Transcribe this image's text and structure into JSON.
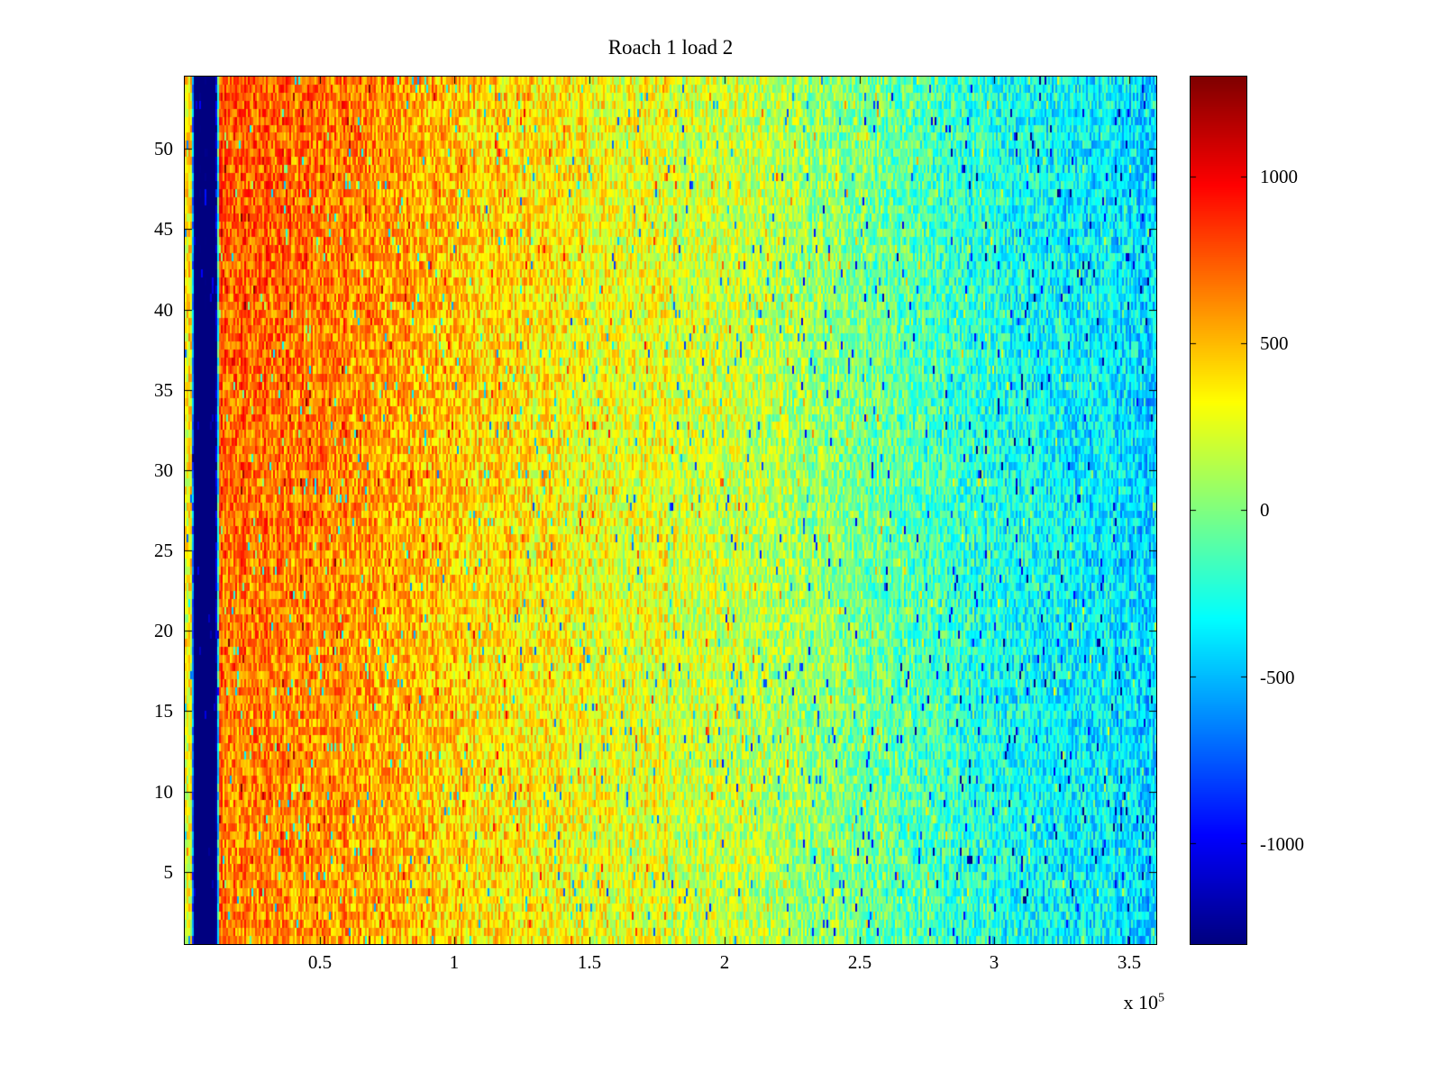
{
  "chart_data": {
    "type": "heatmap",
    "title": "Roach 1 load 2",
    "x_axis": {
      "ticks": [
        "0.5",
        "1",
        "1.5",
        "2",
        "2.5",
        "3",
        "3.5"
      ],
      "tick_values": [
        0.5,
        1,
        1.5,
        2,
        2.5,
        3,
        3.5
      ],
      "range": [
        0,
        3.6
      ],
      "units_multiplier": 100000,
      "exponent_base": "x 10",
      "exponent": "5"
    },
    "y_axis": {
      "ticks": [
        "5",
        "10",
        "15",
        "20",
        "25",
        "30",
        "35",
        "40",
        "45",
        "50"
      ],
      "tick_values": [
        5,
        10,
        15,
        20,
        25,
        30,
        35,
        40,
        45,
        50
      ],
      "range": [
        1,
        54
      ],
      "rows": 54
    },
    "colorbar": {
      "ticks": [
        "1000",
        "500",
        "0",
        "-500",
        "-1000"
      ],
      "tick_values": [
        1000,
        500,
        0,
        -500,
        -1000
      ],
      "clim": [
        -1300,
        1300
      ],
      "colormap": "jet"
    },
    "value_profile": [
      [
        0.0,
        260
      ],
      [
        0.025,
        300
      ],
      [
        0.035,
        -1480
      ],
      [
        0.115,
        -1480
      ],
      [
        0.13,
        700
      ],
      [
        0.4,
        640
      ],
      [
        0.7,
        560
      ],
      [
        1.0,
        450
      ],
      [
        1.3,
        340
      ],
      [
        1.6,
        260
      ],
      [
        1.8,
        280
      ],
      [
        1.85,
        200
      ],
      [
        2.1,
        140
      ],
      [
        2.4,
        30
      ],
      [
        2.7,
        -120
      ],
      [
        3.0,
        -260
      ],
      [
        3.3,
        -360
      ],
      [
        3.6,
        -420
      ]
    ],
    "noise_amplitude": 270,
    "row_top_left_boost": 160,
    "dark_stripe_x": [
      0.035,
      0.115
    ],
    "seam_x": 1.8
  }
}
